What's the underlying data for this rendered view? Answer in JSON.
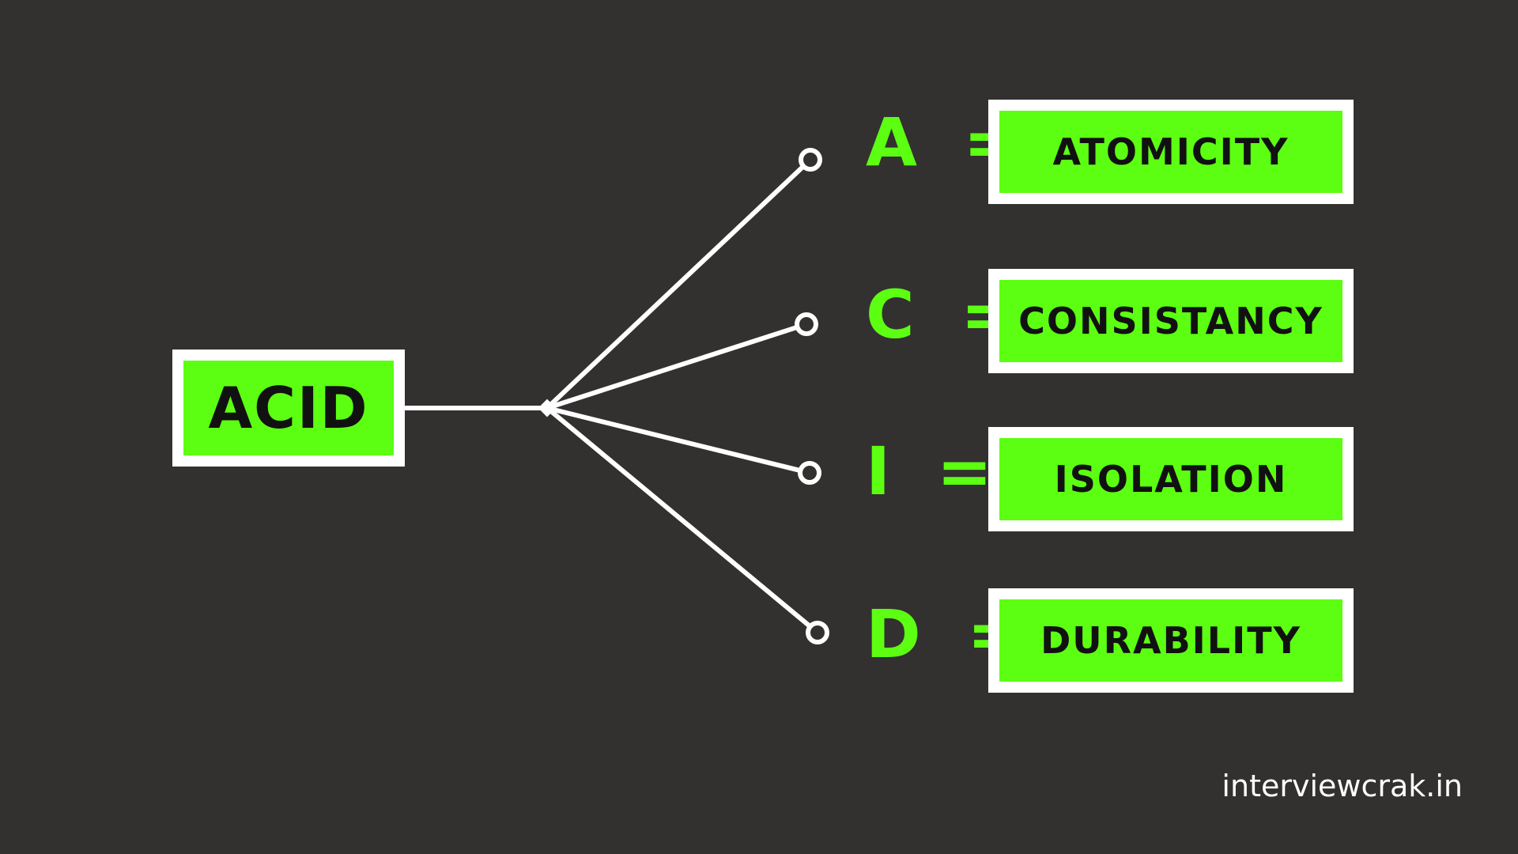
{
  "colors": {
    "background": "#333030",
    "accent": "#5cff12",
    "line": "#ffffff",
    "text_dark": "#111111"
  },
  "root": {
    "label": "ACID"
  },
  "items": [
    {
      "letter": "A",
      "equals": "=",
      "term": "ATOMICITY"
    },
    {
      "letter": "C",
      "equals": "=",
      "term": "CONSISTANCY"
    },
    {
      "letter": "I",
      "equals": "=",
      "term": "ISOLATION"
    },
    {
      "letter": "D",
      "equals": "=",
      "term": "DURABILITY"
    }
  ],
  "footer": {
    "site": "interviewcrak.in"
  }
}
